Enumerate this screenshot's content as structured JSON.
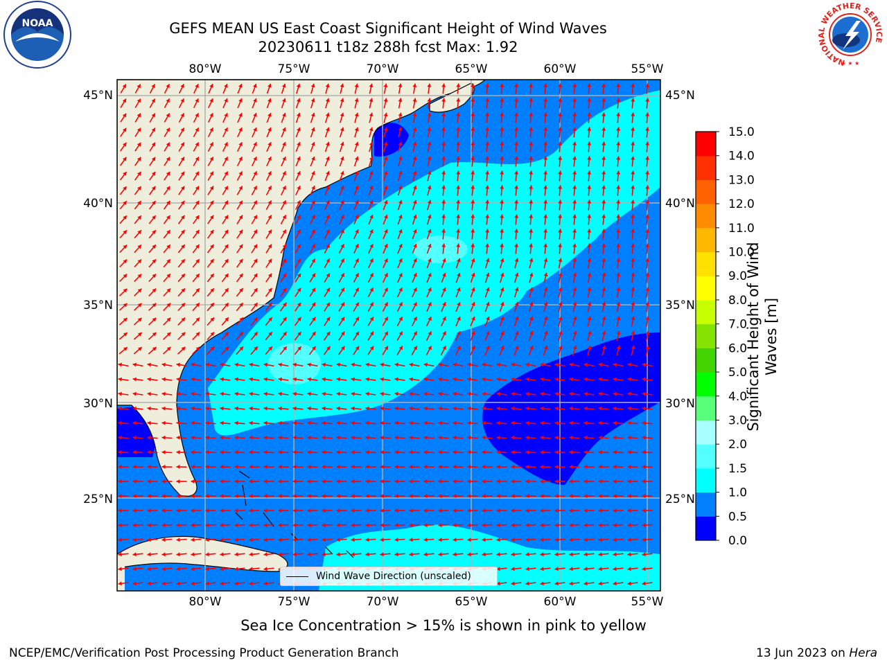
{
  "title": {
    "line1": "GEFS MEAN US East Coast Significant Height of Wind Waves",
    "line2": "20230611 t18z 288h fcst   Max: 1.92"
  },
  "map": {
    "lon_ticks": [
      "80°W",
      "75°W",
      "70°W",
      "65°W",
      "60°W",
      "55°W"
    ],
    "lat_ticks": [
      "45°N",
      "40°N",
      "35°N",
      "30°N",
      "25°N"
    ],
    "lon_range": [
      -85,
      -54.3
    ],
    "lat_range": [
      20.3,
      46
    ],
    "legend_label": "Wind Wave Direction (unscaled)"
  },
  "colorbar": {
    "label_line1": "Significant Height of Wind",
    "label_line2": "Waves [m]",
    "ticks": [
      "15.0",
      "14.0",
      "13.0",
      "12.0",
      "11.0",
      "10.0",
      "9.0",
      "8.0",
      "7.0",
      "6.0",
      "5.0",
      "4.0",
      "3.0",
      "2.0",
      "1.5",
      "1.0",
      "0.5",
      "0.0"
    ],
    "colors": [
      "#0000ff",
      "#0080ff",
      "#00ffff",
      "#54ffff",
      "#a8ffff",
      "#58ff78",
      "#00ff00",
      "#42d400",
      "#84e400",
      "#c8ff00",
      "#ffff00",
      "#ffe000",
      "#ffb800",
      "#ff8c00",
      "#ff6000",
      "#ff3000",
      "#ff0000"
    ]
  },
  "colors": {
    "land": "#efeedd",
    "wave_0_05": "#0000ff",
    "wave_05_10": "#0080ff",
    "wave_10_15": "#00ffff",
    "wave_15_20": "#54ffff",
    "arrow": "#ff0000",
    "grid": "#b0b0b0"
  },
  "footer": {
    "subtitle": "Sea Ice Concentration > 15% is shown in pink to yellow",
    "credit": "NCEP/EMC/Verification Post Processing Product Generation Branch",
    "date": "13 Jun 2023 on ",
    "machine": "Hera"
  },
  "logos": {
    "left": "NOAA",
    "right_ring": "NATIONAL WEATHER SERVICE"
  }
}
